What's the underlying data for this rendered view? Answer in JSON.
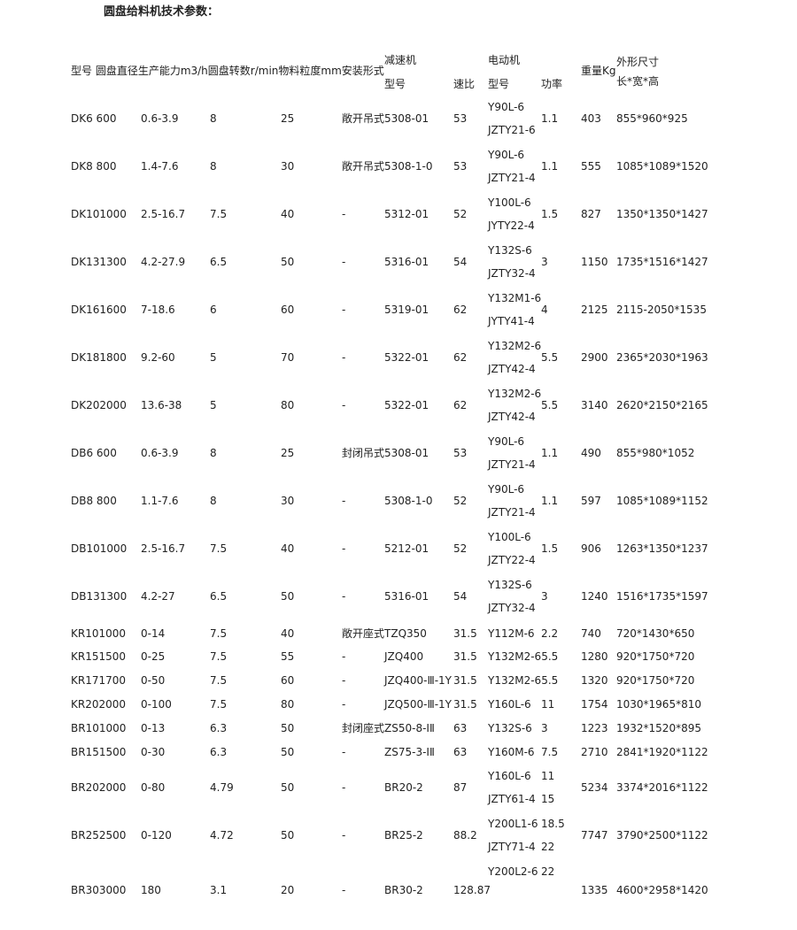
{
  "title": "圆盘给料机技术参数：",
  "header": {
    "main": "型号 圆盘直径生产能力m3/h圆盘转数r/min物料粒度mm安装形式",
    "reducer": "减速机",
    "reducer_model": "型号",
    "ratio": "速比",
    "motor": "电动机",
    "motor_model": "型号",
    "power": "功率",
    "weight": "重量Kg",
    "dims": "外形尺寸",
    "dims_sub": "长*宽*高"
  },
  "rows": [
    {
      "model": "DK6  600",
      "capacity": "0.6-3.9",
      "speed": "8",
      "size": "25",
      "mount": "敞开吊式",
      "reducer": "5308-01",
      "ratio": "53",
      "motors": [
        [
          "Y90L-6",
          ""
        ],
        [
          "JZTY21-6",
          ""
        ]
      ],
      "power": "1.1",
      "weight": "403",
      "dims": "855*960*925"
    },
    {
      "model": "DK8  800",
      "capacity": "1.4-7.6",
      "speed": "8",
      "size": "30",
      "mount": "敞开吊式",
      "reducer": "5308-1-0",
      "ratio": "53",
      "motors": [
        [
          "Y90L-6",
          ""
        ],
        [
          "JZTY21-4",
          ""
        ]
      ],
      "power": "1.1",
      "weight": "555",
      "dims": "1085*1089*1520"
    },
    {
      "model": "DK101000",
      "capacity": "2.5-16.7",
      "speed": "7.5",
      "size": "40",
      "mount": "-",
      "reducer": "5312-01",
      "ratio": "52",
      "motors": [
        [
          "Y100L-6",
          ""
        ],
        [
          "JYTY22-4",
          ""
        ]
      ],
      "power": "1.5",
      "weight": "827",
      "dims": "1350*1350*1427"
    },
    {
      "model": "DK131300",
      "capacity": "4.2-27.9",
      "speed": "6.5",
      "size": "50",
      "mount": "-",
      "reducer": "5316-01",
      "ratio": "54",
      "motors": [
        [
          "Y132S-6",
          ""
        ],
        [
          "JZTY32-4",
          ""
        ]
      ],
      "power": "3",
      "weight": "1150",
      "dims": "1735*1516*1427"
    },
    {
      "model": "DK161600",
      "capacity": "7-18.6",
      "speed": "6",
      "size": "60",
      "mount": "-",
      "reducer": "5319-01",
      "ratio": "62",
      "motors": [
        [
          "Y132M1-6",
          ""
        ],
        [
          "JYTY41-4",
          ""
        ]
      ],
      "power": "4",
      "weight": "2125",
      "dims": "2115-2050*1535"
    },
    {
      "model": "DK181800",
      "capacity": "9.2-60",
      "speed": "5",
      "size": "70",
      "mount": "-",
      "reducer": "5322-01",
      "ratio": "62",
      "motors": [
        [
          "Y132M2-6",
          ""
        ],
        [
          "JZTY42-4",
          ""
        ]
      ],
      "power": "5.5",
      "weight": "2900",
      "dims": "2365*2030*1963"
    },
    {
      "model": "DK202000",
      "capacity": "13.6-38",
      "speed": "5",
      "size": "80",
      "mount": "-",
      "reducer": "5322-01",
      "ratio": "62",
      "motors": [
        [
          "Y132M2-6",
          ""
        ],
        [
          "JZTY42-4",
          ""
        ]
      ],
      "power": "5.5",
      "weight": "3140",
      "dims": "2620*2150*2165"
    },
    {
      "model": "DB6  600",
      "capacity": "0.6-3.9",
      "speed": "8",
      "size": "25",
      "mount": "封闭吊式",
      "reducer": "5308-01",
      "ratio": "53",
      "motors": [
        [
          "Y90L-6",
          ""
        ],
        [
          "JZTY21-4",
          ""
        ]
      ],
      "power": "1.1",
      "weight": "490",
      "dims": "855*980*1052"
    },
    {
      "model": "DB8  800",
      "capacity": "1.1-7.6",
      "speed": "8",
      "size": "30",
      "mount": "-",
      "reducer": "5308-1-0",
      "ratio": "52",
      "motors": [
        [
          "Y90L-6",
          ""
        ],
        [
          "JZTY21-4",
          ""
        ]
      ],
      "power": "1.1",
      "weight": "597",
      "dims": "1085*1089*1152"
    },
    {
      "model": "DB101000",
      "capacity": "2.5-16.7",
      "speed": "7.5",
      "size": "40",
      "mount": "-",
      "reducer": "5212-01",
      "ratio": "52",
      "motors": [
        [
          "Y100L-6",
          ""
        ],
        [
          "JZTY22-4",
          ""
        ]
      ],
      "power": "1.5",
      "weight": "906",
      "dims": "1263*1350*1237"
    },
    {
      "model": "DB131300",
      "capacity": "4.2-27",
      "speed": "6.5",
      "size": "50",
      "mount": "-",
      "reducer": "5316-01",
      "ratio": "54",
      "motors": [
        [
          "Y132S-6",
          ""
        ],
        [
          "JZTY32-4",
          ""
        ]
      ],
      "power": "3",
      "weight": "1240",
      "dims": "1516*1735*1597"
    },
    {
      "model": "KR101000",
      "capacity": "0-14",
      "speed": "7.5",
      "size": "40",
      "mount": "敞开座式",
      "reducer": "TZQ350",
      "ratio": "31.5",
      "motors": [
        [
          "Y112M-6",
          "2.2"
        ]
      ],
      "power": "",
      "weight": "740",
      "dims": "720*1430*650"
    },
    {
      "model": "KR151500",
      "capacity": "0-25",
      "speed": "7.5",
      "size": "55",
      "mount": "-",
      "reducer": "JZQ400",
      "ratio": "31.5",
      "motors": [
        [
          "Y132M2-6",
          "5.5"
        ]
      ],
      "power": "",
      "weight": "1280",
      "dims": "920*1750*720"
    },
    {
      "model": "KR171700",
      "capacity": "0-50",
      "speed": "7.5",
      "size": "60",
      "mount": "-",
      "reducer": "JZQ400-Ⅲ-1Y",
      "ratio": "31.5",
      "motors": [
        [
          "Y132M2-6",
          "5.5"
        ]
      ],
      "power": "",
      "weight": "1320",
      "dims": "920*1750*720"
    },
    {
      "model": "KR202000",
      "capacity": "0-100",
      "speed": "7.5",
      "size": "80",
      "mount": "-",
      "reducer": "JZQ500-Ⅲ-1Y",
      "ratio": "31.5",
      "motors": [
        [
          "Y160L-6",
          "11"
        ]
      ],
      "power": "",
      "weight": "1754",
      "dims": "1030*1965*810"
    },
    {
      "model": "BR101000",
      "capacity": "0-13",
      "speed": "6.3",
      "size": "50",
      "mount": "封闭座式",
      "reducer": "ZS50-8-ⅠⅡ",
      "ratio": "63",
      "motors": [
        [
          "Y132S-6",
          "3"
        ]
      ],
      "power": "",
      "weight": "1223",
      "dims": "1932*1520*895"
    },
    {
      "model": "BR151500",
      "capacity": "0-30",
      "speed": "6.3",
      "size": "50",
      "mount": "-",
      "reducer": "ZS75-3-ⅠⅡ",
      "ratio": "63",
      "motors": [
        [
          "Y160M-6",
          "7.5"
        ]
      ],
      "power": "",
      "weight": "2710",
      "dims": "2841*1920*1122"
    },
    {
      "model": "BR202000",
      "capacity": "0-80",
      "speed": "4.79",
      "size": "50",
      "mount": "-",
      "reducer": "BR20-2",
      "ratio": "87",
      "motors": [
        [
          "Y160L-6",
          "11"
        ],
        [
          "JZTY61-4",
          "15"
        ]
      ],
      "power": "",
      "weight": "5234",
      "dims": "3374*2016*1122"
    },
    {
      "model": "BR252500",
      "capacity": "0-120",
      "speed": "4.72",
      "size": "50",
      "mount": "-",
      "reducer": "BR25-2",
      "ratio": "88.2",
      "motors": [
        [
          "Y200L1-6",
          "18.5"
        ],
        [
          "JZTY71-4",
          "22"
        ]
      ],
      "power": "",
      "weight": "7747",
      "dims": "3790*2500*1122"
    },
    {
      "model": "BR303000",
      "capacity": "180",
      "speed": "3.1",
      "size": "20",
      "mount": "-",
      "reducer": "BR30-2",
      "ratio": "128.87",
      "motors": [
        [
          "Y200L2-6",
          "22"
        ]
      ],
      "power": "",
      "weight": "1335",
      "dims": "4600*2958*1420"
    }
  ]
}
